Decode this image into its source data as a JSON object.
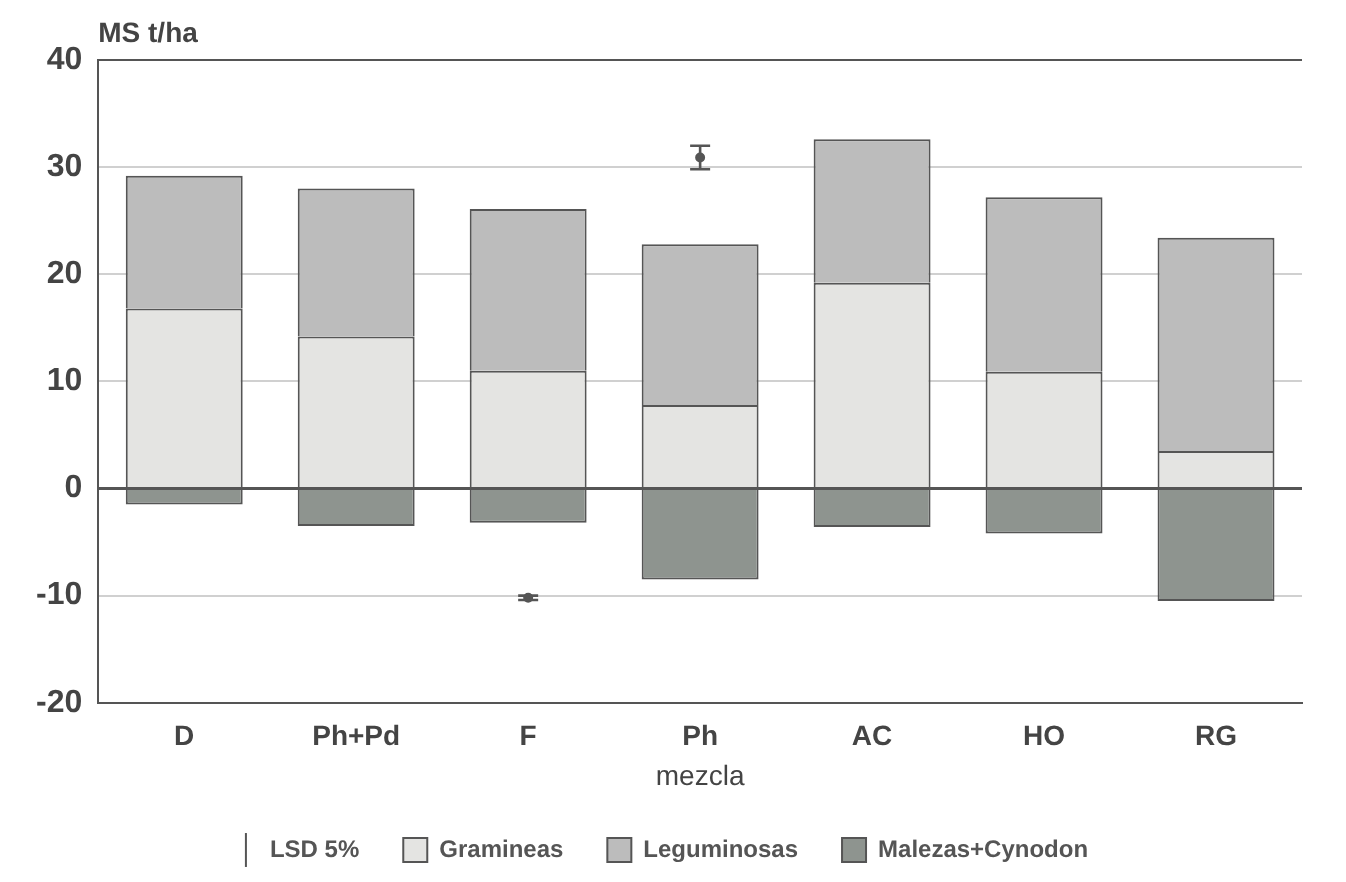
{
  "chart_data": {
    "type": "bar",
    "stacked": true,
    "ylabel": "MS t/ha",
    "xlabel": "mezcla",
    "categories": [
      "D",
      "Ph+Pd",
      "F",
      "Ph",
      "AC",
      "HO",
      "RG"
    ],
    "series": [
      {
        "name": "LSD 5%",
        "type": "scatter",
        "color": "#555555",
        "x": [
          "F",
          "Ph"
        ],
        "values": [
          -10.2,
          30.9
        ],
        "errors": [
          [
            -10.4,
            -10.0
          ],
          [
            29.8,
            32.0
          ]
        ]
      },
      {
        "name": "Gramineas",
        "color": "#e4e4e2",
        "values": [
          16.8,
          14.2,
          11.0,
          7.8,
          19.2,
          10.9,
          3.5
        ]
      },
      {
        "name": "Leguminosas",
        "color": "#bcbcbc",
        "values": [
          12.4,
          13.8,
          15.1,
          15.0,
          13.4,
          16.3,
          19.9
        ]
      },
      {
        "name": "Malezas+Cynodon",
        "color": "#8e948f",
        "values": [
          -1.5,
          -3.5,
          -3.2,
          -8.5,
          -3.6,
          -4.2,
          -10.5
        ]
      }
    ],
    "ylim": [
      -20,
      40
    ],
    "yticks": [
      -20,
      -10,
      0,
      10,
      20,
      30,
      40
    ],
    "grid": "y",
    "legend": "bottom"
  }
}
